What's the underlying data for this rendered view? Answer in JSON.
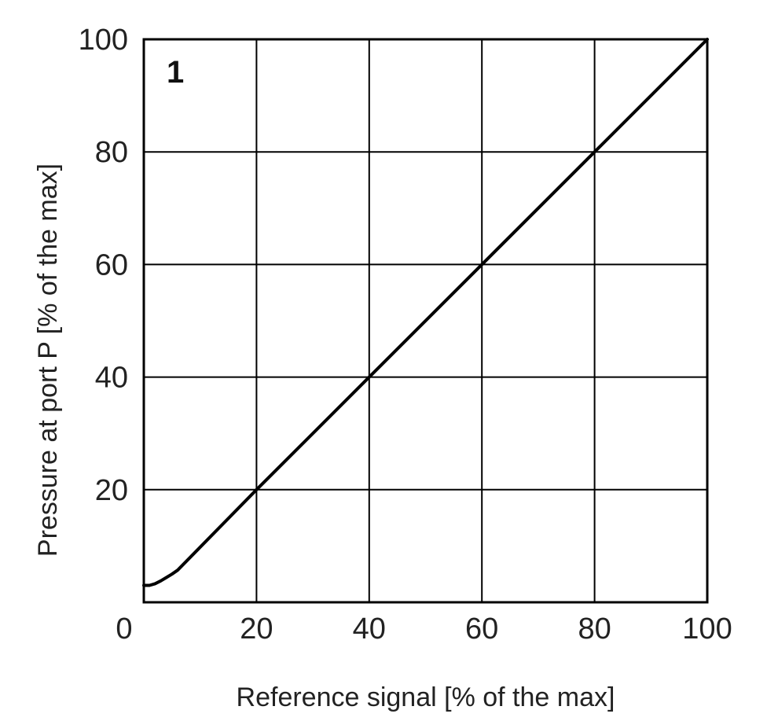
{
  "chart_data": {
    "type": "line",
    "title": "",
    "panel_label": "1",
    "xlabel": "Reference signal [% of the max]",
    "ylabel": "Pressure at port P [% of the max]",
    "xlim": [
      0,
      100
    ],
    "ylim": [
      0,
      100
    ],
    "x_ticks": [
      0,
      20,
      40,
      60,
      80,
      100
    ],
    "y_ticks": [
      20,
      40,
      60,
      80,
      100
    ],
    "x_tick_labels": [
      "0",
      "20",
      "40",
      "60",
      "80",
      "100"
    ],
    "y_tick_labels": [
      "20",
      "40",
      "60",
      "80",
      "100"
    ],
    "grid": true,
    "legend": "none",
    "series": [
      {
        "x": [
          0,
          1,
          2,
          3,
          4,
          5,
          6,
          20,
          40,
          60,
          80,
          100
        ],
        "y": [
          3,
          3,
          3.3,
          3.8,
          4.4,
          5,
          5.7,
          20,
          40,
          60,
          80,
          100
        ]
      }
    ],
    "colors": {
      "line": "#000000",
      "grid": "#000000",
      "text": "#222222"
    }
  }
}
